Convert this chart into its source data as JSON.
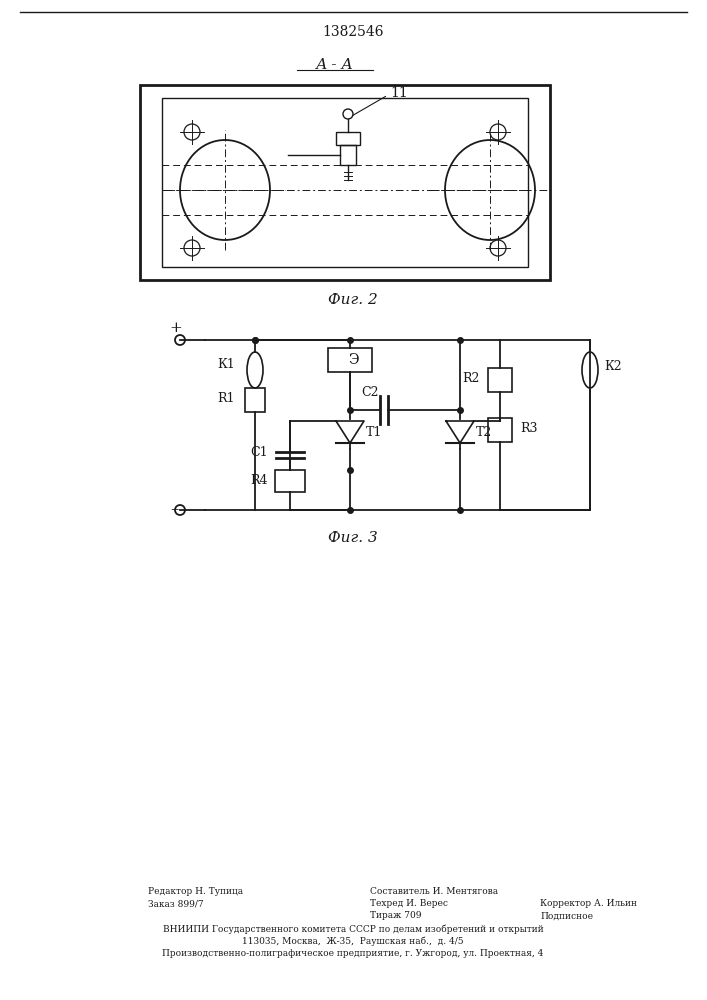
{
  "title": "1382546",
  "fig2_label": "А - А",
  "fig2_caption": "Фиг. 2",
  "fig3_caption": "Фиг. 3",
  "bg_color": "#ffffff",
  "line_color": "#1a1a1a"
}
